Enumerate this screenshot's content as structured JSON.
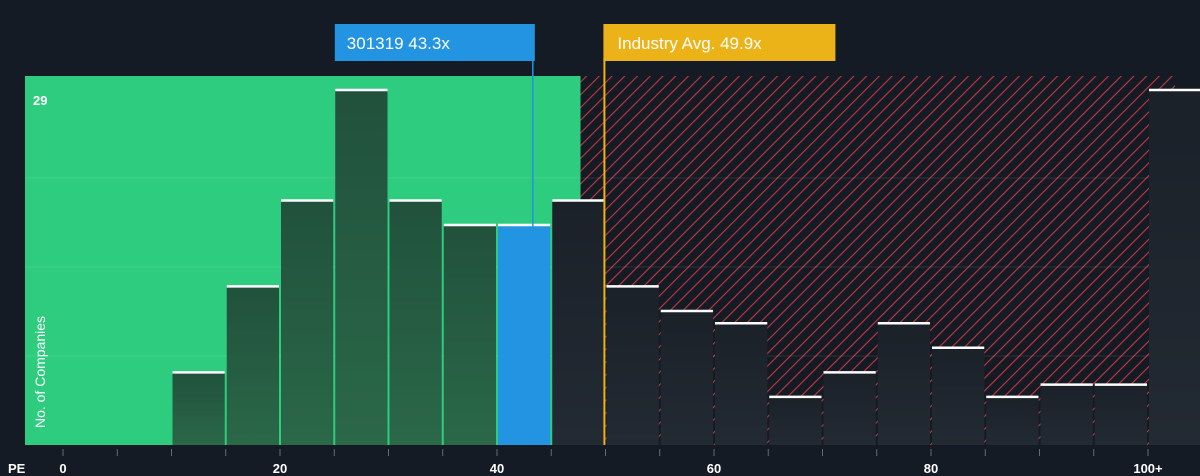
{
  "chart_data": {
    "type": "bar",
    "x_axis_name": "PE",
    "x_ticks": [
      {
        "value": 0,
        "label": "0"
      },
      {
        "value": 20,
        "label": "20"
      },
      {
        "value": 40,
        "label": "40"
      },
      {
        "value": 60,
        "label": "60"
      },
      {
        "value": 80,
        "label": "80"
      },
      {
        "value": 100,
        "label": "100+"
      }
    ],
    "ylabel": "No. of Companies",
    "y_max_label": "29",
    "ylim": [
      0,
      29
    ],
    "bin_width": 5,
    "bins": [
      {
        "x0": 10,
        "value": 6
      },
      {
        "x0": 15,
        "value": 13
      },
      {
        "x0": 20,
        "value": 20
      },
      {
        "x0": 25,
        "value": 29
      },
      {
        "x0": 30,
        "value": 20
      },
      {
        "x0": 35,
        "value": 18
      },
      {
        "x0": 40,
        "value": 18,
        "highlight": true
      },
      {
        "x0": 45,
        "value": 20
      },
      {
        "x0": 50,
        "value": 13
      },
      {
        "x0": 55,
        "value": 11
      },
      {
        "x0": 60,
        "value": 10
      },
      {
        "x0": 65,
        "value": 4
      },
      {
        "x0": 70,
        "value": 6
      },
      {
        "x0": 75,
        "value": 10
      },
      {
        "x0": 80,
        "value": 8
      },
      {
        "x0": 85,
        "value": 4
      },
      {
        "x0": 90,
        "value": 5
      },
      {
        "x0": 95,
        "value": 5
      },
      {
        "x0": 100,
        "value": 29
      }
    ],
    "company": {
      "label": "301319 43.3x",
      "value": 43.3
    },
    "industry_avg": {
      "label": "Industry Avg. 49.9x",
      "value": 49.9
    },
    "good_zone_end": 47.7,
    "colors": {
      "background": "#151b24",
      "good_zone": "#2ecc7e",
      "bad_zone_stripe": "#c0393f",
      "bar_in_good_zone": "#21513c",
      "bar_in_bad_zone": "#1b2129",
      "highlight_bar": "#2394e2",
      "company_callout": "#2394e2",
      "industry_callout": "#ecb318"
    }
  }
}
